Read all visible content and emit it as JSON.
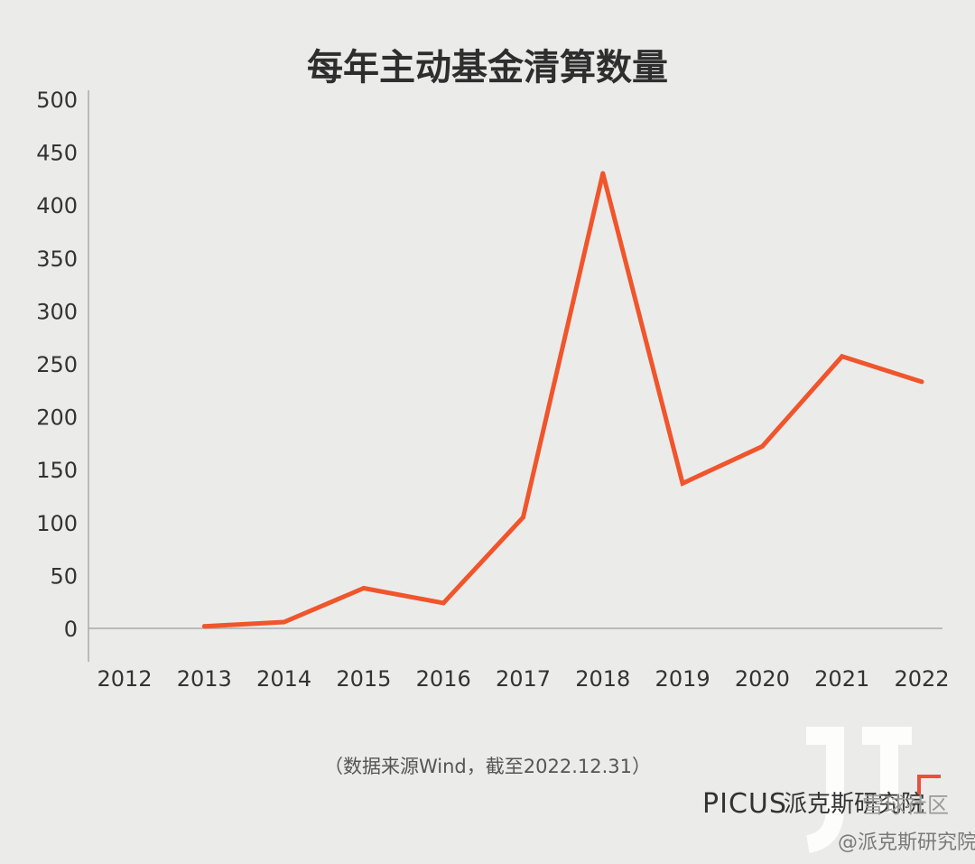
{
  "chart_data": {
    "type": "line",
    "title": "每年主动基金清算数量",
    "categories": [
      "2012",
      "2013",
      "2014",
      "2015",
      "2016",
      "2017",
      "2018",
      "2019",
      "2020",
      "2021",
      "2022"
    ],
    "series": [
      {
        "values": [
          null,
          2,
          6,
          38,
          24,
          105,
          430,
          137,
          172,
          257,
          233
        ]
      }
    ],
    "yticks": [
      "0",
      "50",
      "100",
      "150",
      "200",
      "250",
      "300",
      "350",
      "400",
      "450",
      "500"
    ],
    "ylim": [
      0,
      500
    ],
    "grid": false,
    "line_color": "#f0552b"
  },
  "footer": {
    "source_note": "（数据来源Wind，截至2022.12.31）",
    "brand_latin": "PICUS",
    "brand_cn": "派克斯研究院",
    "community": "雪球社区",
    "watermark": "@派克斯研究院"
  }
}
